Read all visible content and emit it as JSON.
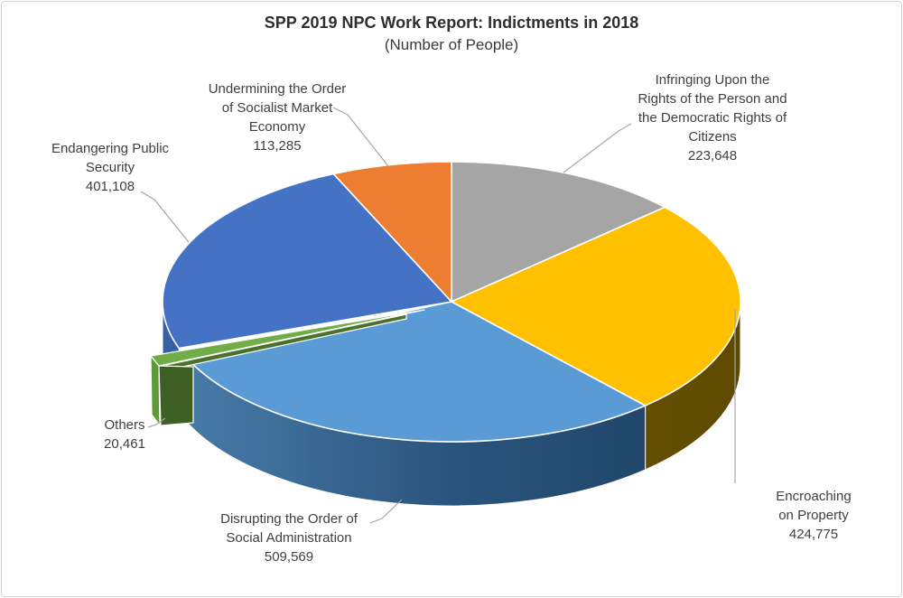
{
  "title": "SPP 2019 NPC Work Report: Indictments in 2018",
  "subtitle": "(Number of People)",
  "style": {
    "label_color": "#3F3F3F",
    "leader_line_color": "#A6A6A6",
    "slice_outline_color": "#FFFFFF",
    "frame_border_color": "#D2D2D2",
    "background": "#FFFFFF"
  },
  "chart_data": {
    "type": "pie",
    "projection": "3d",
    "start_angle_deg": 0,
    "direction": "clockwise",
    "legend": "none",
    "slices": [
      {
        "id": "infringing-rights",
        "label": "Infringing Upon the\nRights of the Person and\nthe Democratic Rights of\nCitizens",
        "value": 223648,
        "value_text": "223,648",
        "color": "#A5A5A5",
        "exploded": false,
        "side": {
          "kind": "none"
        }
      },
      {
        "id": "encroaching-property",
        "label": "Encroaching on Property",
        "value": 424775,
        "value_text": "424,775",
        "color": "#FFC000",
        "exploded": false,
        "side": {
          "kind": "gradient",
          "stops": [
            "#7B6003",
            "#6E5501",
            "#5F4A00"
          ]
        }
      },
      {
        "id": "disrupting-social-administration",
        "label": "Disrupting the Order of\nSocial Administration",
        "value": 509569,
        "value_text": "509,569",
        "color": "#5B9BD5",
        "exploded": false,
        "side": {
          "kind": "gradient",
          "stops": [
            "#4B7EAC",
            "#2A547D",
            "#1D4063"
          ]
        }
      },
      {
        "id": "others",
        "label": "Others",
        "value": 20461,
        "value_text": "20,461",
        "color": "#70AD47",
        "exploded": true,
        "side": {
          "kind": "custom",
          "strip_color": "#4A722B",
          "cap_light_color": "#5F9A39",
          "cap_dark_color": "#3E6123"
        }
      },
      {
        "id": "endangering-public-security",
        "label": "Endangering Public\nSecurity",
        "value": 401108,
        "value_text": "401,108",
        "color": "#4472C4",
        "exploded": false,
        "side": {
          "kind": "solid",
          "color": "#3760A6"
        }
      },
      {
        "id": "undermining-market-economy",
        "label": "Undermining the Order\nof Socialist Market\nEconomy",
        "value": 113285,
        "value_text": "113,285",
        "color": "#ED7D31",
        "exploded": false,
        "side": {
          "kind": "none"
        }
      }
    ]
  }
}
